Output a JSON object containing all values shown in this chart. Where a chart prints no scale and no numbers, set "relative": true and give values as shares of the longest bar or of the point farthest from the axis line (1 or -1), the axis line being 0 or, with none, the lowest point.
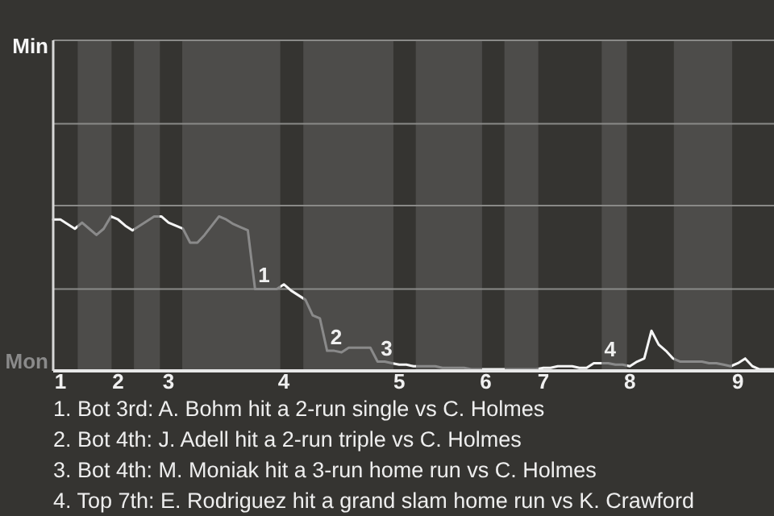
{
  "chart_data": {
    "type": "line",
    "relative": true,
    "categories": [
      null,
      "1",
      null,
      null,
      null,
      null,
      null,
      null,
      null,
      "2",
      null,
      null,
      null,
      null,
      null,
      null,
      "3",
      null,
      null,
      null,
      null,
      null,
      null,
      null,
      null,
      null,
      null,
      null,
      null,
      null,
      null,
      null,
      "4",
      null,
      null,
      null,
      null,
      null,
      null,
      null,
      null,
      null,
      null,
      null,
      null,
      null,
      null,
      null,
      "5",
      null,
      null,
      null,
      null,
      null,
      null,
      null,
      null,
      null,
      null,
      null,
      "6",
      null,
      null,
      null,
      null,
      null,
      null,
      null,
      "7",
      null,
      null,
      null,
      null,
      null,
      null,
      null,
      null,
      null,
      null,
      null,
      "8",
      null,
      null,
      null,
      null,
      null,
      null,
      null,
      null,
      null,
      null,
      null,
      null,
      null,
      null,
      "9",
      null,
      null,
      null,
      null,
      null
    ],
    "series": [
      {
        "color": "#f5f5f5",
        "values": [
          0.98,
          0.98,
          0.95,
          0.92,
          0.96,
          0.92,
          0.88,
          0.92,
          1,
          0.98,
          0.94,
          0.91,
          0.94,
          0.97,
          1,
          1,
          0.96,
          0.94,
          0.92,
          0.83,
          0.83,
          0.88,
          0.94,
          1,
          0.98,
          0.95,
          0.93,
          0.91,
          0.53,
          0.53,
          0.53,
          0.53,
          0.56,
          0.52,
          0.49,
          0.46,
          0.36,
          0.34,
          0.13,
          0.13,
          0.12,
          0.15,
          0.15,
          0.15,
          0.15,
          0.06,
          0.06,
          0.05,
          0.04,
          0.04,
          0.03,
          0.03,
          0.03,
          0.03,
          0.02,
          0.02,
          0.02,
          0.02,
          0.01,
          0.01,
          0.01,
          0.01,
          0.01,
          0.01,
          0.01,
          0.01,
          0.01,
          0.01,
          0.02,
          0.02,
          0.03,
          0.03,
          0.03,
          0.02,
          0.02,
          0.05,
          0.05,
          0.05,
          0.04,
          0.04,
          0.03,
          0.06,
          0.08,
          0.26,
          0.17,
          0.13,
          0.08,
          0.06,
          0.06,
          0.06,
          0.06,
          0.05,
          0.05,
          0.04,
          0.03,
          0.05,
          0.08,
          0.03,
          0.01,
          0.01,
          0.01
        ]
      }
    ],
    "ref_lines": [
      {
        "axis": "y",
        "value": 0.53,
        "color": "#8a8a88"
      },
      {
        "axis": "y",
        "value": 1.07,
        "color": "#8a8a88"
      },
      {
        "axis": "y",
        "value": 1.6,
        "color": "#8a8a88"
      },
      {
        "axis": "y",
        "value": 2.14,
        "color": "#8a8a88"
      }
    ],
    "annotations": [
      {
        "text": "Min"
      },
      {
        "text": "Mon"
      },
      {
        "text": "1",
        "y": 0.53
      },
      {
        "text": "2",
        "y": 0.13
      },
      {
        "text": "3",
        "y": 0.06
      },
      {
        "text": "4",
        "y": 0.05
      },
      "1. Bot 3rd: A. Bohm hit a 2-run single vs C. Holmes",
      "2. Bot 4th: J. Adell hit a 2-run triple vs C. Holmes",
      "3. Bot 4th: M. Moniak hit a 3-run home run vs C. Holmes",
      "4. Top 7th: E. Rodriguez hit a grand slam home run vs K. Crawford"
    ]
  }
}
